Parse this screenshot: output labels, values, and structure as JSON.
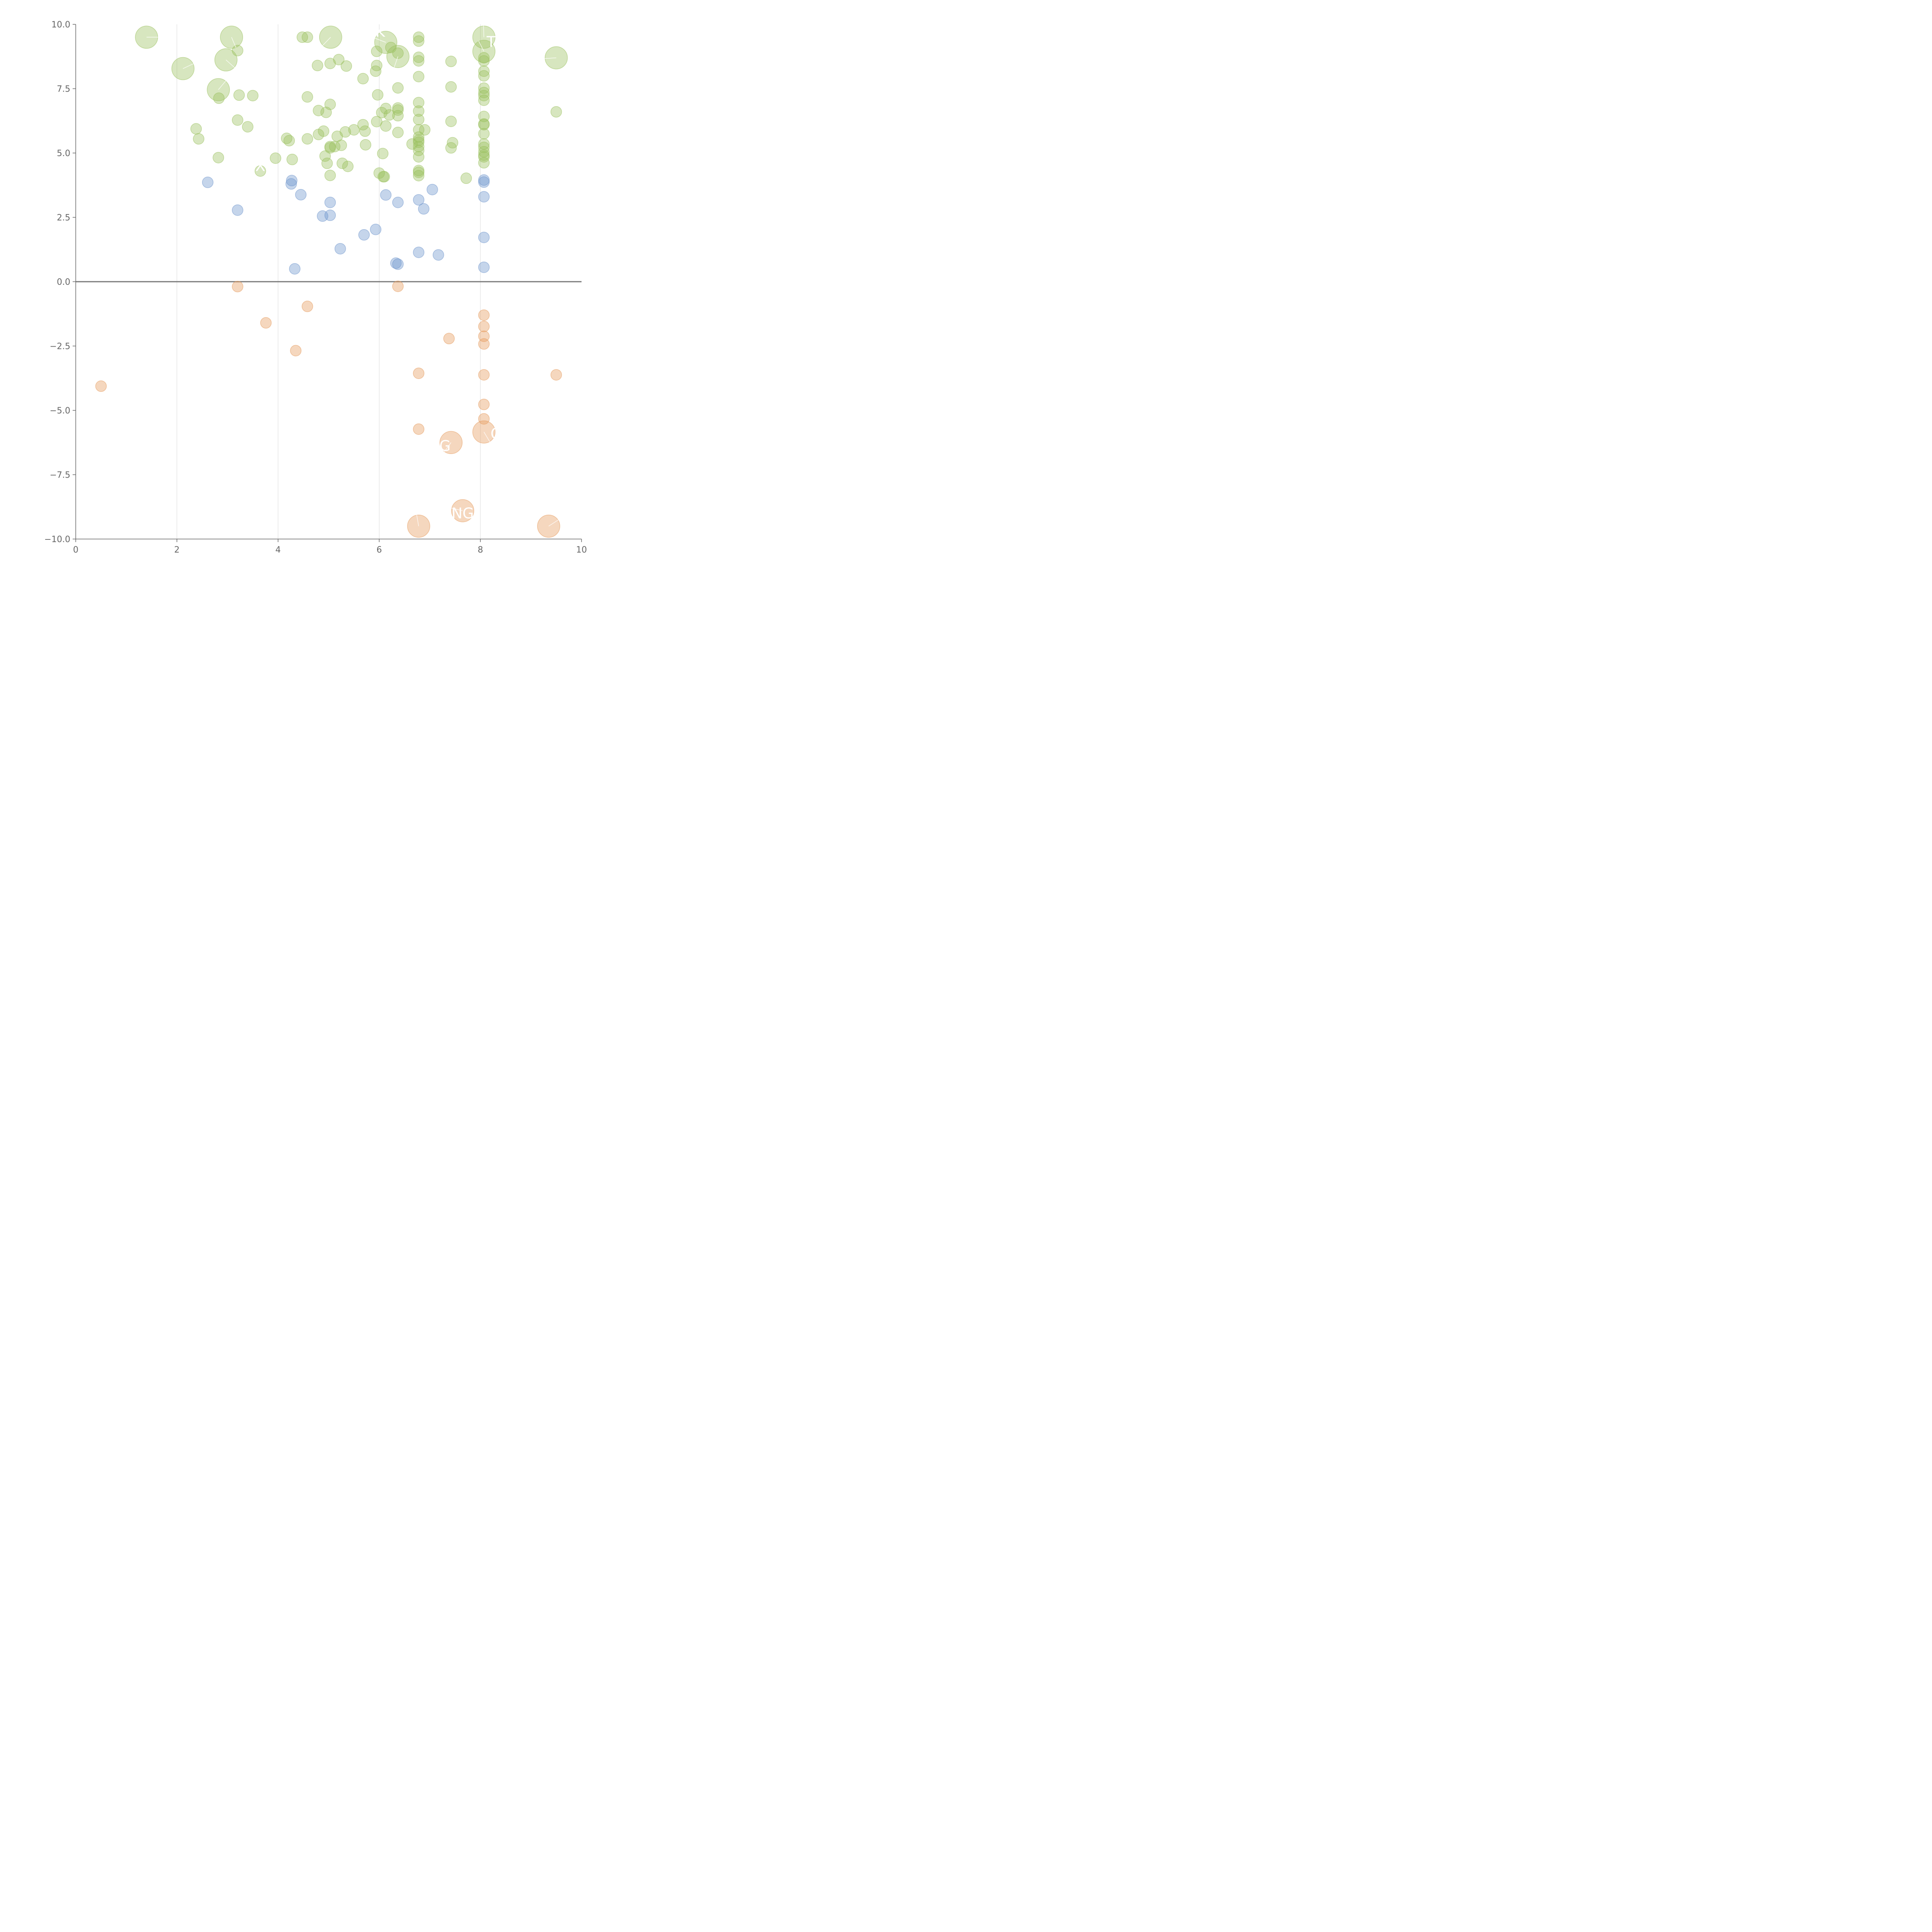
{
  "chart_data": {
    "type": "scatter",
    "subtype": "bubble",
    "title": "",
    "xlabel": "",
    "ylabel": "",
    "xlim": [
      0,
      10
    ],
    "ylim": [
      -10,
      10
    ],
    "xticks": [
      "0",
      "2",
      "4",
      "6",
      "8",
      "10"
    ],
    "yticks": [
      "10.0",
      "7.5",
      "5.0",
      "2.5",
      "0.0",
      "−2.5",
      "−5.0",
      "−7.5",
      "−10.0"
    ],
    "vertical_grid_at": [
      2,
      4,
      6,
      8
    ],
    "zero_line": 0,
    "colors": {
      "green": "#9bc15f",
      "blue": "#6f95cc",
      "orange": "#e69a5c",
      "axis": "#666666",
      "grid": "#d9d9d9"
    },
    "series": [
      {
        "name": "green",
        "color": "#9bc15f",
        "points": [
          [
            1.4,
            9.5,
            2
          ],
          [
            3.08,
            9.5,
            2
          ],
          [
            5.04,
            9.5,
            2
          ],
          [
            6.13,
            9.3,
            2
          ],
          [
            8.07,
            9.5,
            2
          ],
          [
            2.12,
            8.28,
            2
          ],
          [
            2.97,
            8.62,
            2
          ],
          [
            6.37,
            8.75,
            2
          ],
          [
            9.5,
            8.7,
            2
          ],
          [
            8.07,
            8.95,
            2
          ],
          [
            2.82,
            7.46,
            2
          ],
          [
            4.48,
            9.5,
            1
          ],
          [
            4.58,
            9.5,
            1
          ],
          [
            6.78,
            9.5,
            1
          ],
          [
            6.78,
            9.35,
            1
          ],
          [
            3.2,
            8.98,
            1
          ],
          [
            5.95,
            8.95,
            1
          ],
          [
            6.23,
            9.1,
            1
          ],
          [
            6.37,
            8.88,
            1
          ],
          [
            6.78,
            8.72,
            1
          ],
          [
            6.78,
            8.58,
            1
          ],
          [
            7.42,
            8.56,
            1
          ],
          [
            5.2,
            8.63,
            1
          ],
          [
            4.78,
            8.4,
            1
          ],
          [
            5.03,
            8.48,
            1
          ],
          [
            5.35,
            8.38,
            1
          ],
          [
            5.95,
            8.4,
            1
          ],
          [
            5.93,
            8.18,
            1
          ],
          [
            5.68,
            7.89,
            1
          ],
          [
            6.78,
            7.97,
            1
          ],
          [
            8.07,
            8.7,
            1
          ],
          [
            8.07,
            8.58,
            1
          ],
          [
            8.07,
            8.18,
            1
          ],
          [
            8.07,
            8.0,
            1
          ],
          [
            2.83,
            7.13,
            1
          ],
          [
            3.23,
            7.25,
            1
          ],
          [
            3.5,
            7.23,
            1
          ],
          [
            4.58,
            7.18,
            1
          ],
          [
            5.97,
            7.26,
            1
          ],
          [
            6.37,
            7.53,
            1
          ],
          [
            7.42,
            7.57,
            1
          ],
          [
            8.07,
            7.52,
            1
          ],
          [
            8.07,
            7.35,
            1
          ],
          [
            8.07,
            7.23,
            1
          ],
          [
            8.07,
            7.05,
            1
          ],
          [
            6.78,
            6.96,
            1
          ],
          [
            6.78,
            6.63,
            1
          ],
          [
            6.78,
            6.3,
            1
          ],
          [
            5.03,
            6.89,
            1
          ],
          [
            4.8,
            6.65,
            1
          ],
          [
            4.95,
            6.58,
            1
          ],
          [
            6.37,
            6.75,
            1
          ],
          [
            6.37,
            6.67,
            1
          ],
          [
            6.13,
            6.73,
            1
          ],
          [
            6.05,
            6.57,
            1
          ],
          [
            6.2,
            6.48,
            1
          ],
          [
            6.37,
            6.45,
            1
          ],
          [
            5.95,
            6.22,
            1
          ],
          [
            6.13,
            6.05,
            1
          ],
          [
            3.2,
            6.28,
            1
          ],
          [
            3.4,
            6.02,
            1
          ],
          [
            2.38,
            5.94,
            1
          ],
          [
            2.43,
            5.55,
            1
          ],
          [
            7.42,
            6.23,
            1
          ],
          [
            8.07,
            6.42,
            1
          ],
          [
            8.07,
            6.13,
            1
          ],
          [
            8.07,
            6.1,
            1
          ],
          [
            8.07,
            5.75,
            1
          ],
          [
            9.5,
            6.6,
            1
          ],
          [
            5.68,
            6.1,
            1
          ],
          [
            5.72,
            5.85,
            1
          ],
          [
            5.5,
            5.9,
            1
          ],
          [
            5.33,
            5.82,
            1
          ],
          [
            5.17,
            5.65,
            1
          ],
          [
            4.9,
            5.85,
            1
          ],
          [
            4.8,
            5.72,
            1
          ],
          [
            4.58,
            5.55,
            1
          ],
          [
            4.17,
            5.57,
            1
          ],
          [
            4.22,
            5.48,
            1
          ],
          [
            6.37,
            5.8,
            1
          ],
          [
            6.78,
            5.9,
            1
          ],
          [
            6.9,
            5.9,
            1
          ],
          [
            6.78,
            5.62,
            1
          ],
          [
            6.78,
            5.5,
            1
          ],
          [
            6.78,
            5.42,
            1
          ],
          [
            6.65,
            5.35,
            1
          ],
          [
            6.78,
            5.25,
            1
          ],
          [
            6.78,
            5.1,
            1
          ],
          [
            6.78,
            4.85,
            1
          ],
          [
            7.45,
            5.4,
            1
          ],
          [
            7.42,
            5.2,
            1
          ],
          [
            8.07,
            5.35,
            1
          ],
          [
            8.07,
            5.22,
            1
          ],
          [
            8.07,
            5.05,
            1
          ],
          [
            8.07,
            4.92,
            1
          ],
          [
            8.07,
            4.85,
            1
          ],
          [
            8.07,
            4.62,
            1
          ],
          [
            5.73,
            5.32,
            1
          ],
          [
            5.03,
            5.25,
            1
          ],
          [
            5.25,
            5.3,
            1
          ],
          [
            5.12,
            5.25,
            1
          ],
          [
            5.03,
            5.2,
            1
          ],
          [
            4.93,
            4.88,
            1
          ],
          [
            4.97,
            4.6,
            1
          ],
          [
            5.27,
            4.6,
            1
          ],
          [
            5.38,
            4.48,
            1
          ],
          [
            5.03,
            4.13,
            1
          ],
          [
            6.07,
            4.98,
            1
          ],
          [
            2.82,
            4.82,
            1
          ],
          [
            3.95,
            4.8,
            1
          ],
          [
            4.28,
            4.75,
            1
          ],
          [
            3.65,
            4.3,
            1
          ],
          [
            6.0,
            4.22,
            1
          ],
          [
            6.08,
            4.08,
            1
          ],
          [
            6.1,
            4.08,
            1
          ],
          [
            6.78,
            4.32,
            1
          ],
          [
            6.78,
            4.25,
            1
          ],
          [
            6.78,
            4.12,
            1
          ],
          [
            7.72,
            4.02,
            1
          ]
        ]
      },
      {
        "name": "blue",
        "color": "#6f95cc",
        "points": [
          [
            2.61,
            3.86,
            1
          ],
          [
            4.27,
            3.93,
            1
          ],
          [
            4.26,
            3.8,
            1
          ],
          [
            4.45,
            3.38,
            1
          ],
          [
            3.2,
            2.78,
            1
          ],
          [
            5.03,
            3.08,
            1
          ],
          [
            4.88,
            2.55,
            1
          ],
          [
            5.03,
            2.58,
            1
          ],
          [
            6.13,
            3.37,
            1
          ],
          [
            6.37,
            3.08,
            1
          ],
          [
            6.78,
            3.18,
            1
          ],
          [
            6.88,
            2.83,
            1
          ],
          [
            7.05,
            3.58,
            1
          ],
          [
            8.07,
            3.95,
            1
          ],
          [
            8.07,
            3.87,
            1
          ],
          [
            8.07,
            3.3,
            1
          ],
          [
            5.93,
            2.03,
            1
          ],
          [
            5.7,
            1.82,
            1
          ],
          [
            5.23,
            1.28,
            1
          ],
          [
            8.07,
            1.72,
            1
          ],
          [
            6.78,
            1.14,
            1
          ],
          [
            7.17,
            1.04,
            1
          ],
          [
            6.33,
            0.72,
            1
          ],
          [
            6.37,
            0.68,
            1
          ],
          [
            4.33,
            0.5,
            1
          ],
          [
            8.07,
            0.56,
            1
          ]
        ]
      },
      {
        "name": "orange",
        "color": "#e69a5c",
        "points": [
          [
            3.2,
            -0.19,
            1
          ],
          [
            6.37,
            -0.18,
            1
          ],
          [
            4.58,
            -0.96,
            1
          ],
          [
            3.76,
            -1.6,
            1
          ],
          [
            8.07,
            -1.3,
            1
          ],
          [
            8.07,
            -1.74,
            1
          ],
          [
            8.07,
            -2.12,
            1
          ],
          [
            7.38,
            -2.21,
            1
          ],
          [
            8.07,
            -2.42,
            1
          ],
          [
            4.35,
            -2.68,
            1
          ],
          [
            6.78,
            -3.56,
            1
          ],
          [
            8.07,
            -3.62,
            1
          ],
          [
            9.5,
            -3.62,
            1
          ],
          [
            0.5,
            -4.06,
            1
          ],
          [
            8.07,
            -4.77,
            1
          ],
          [
            8.07,
            -5.33,
            1
          ],
          [
            6.78,
            -5.73,
            1
          ],
          [
            8.07,
            -5.84,
            2
          ],
          [
            7.42,
            -6.25,
            2
          ],
          [
            7.65,
            -8.9,
            2
          ],
          [
            6.78,
            -9.5,
            2
          ],
          [
            9.35,
            -9.5,
            2
          ]
        ]
      }
    ],
    "labels": [
      {
        "text": "K",
        "x": 6.02,
        "y": 9.52,
        "anchor": "middle"
      },
      {
        "text": "TA",
        "x": 8.3,
        "y": 9.12,
        "anchor": "middle"
      },
      {
        "text": "X",
        "x": 3.65,
        "y": 4.3,
        "anchor": "middle"
      },
      {
        "text": "G",
        "x": 7.3,
        "y": -6.58,
        "anchor": "middle"
      },
      {
        "text": "O",
        "x": 8.2,
        "y": -6.1,
        "anchor": "start"
      },
      {
        "text": "NG",
        "x": 7.65,
        "y": -9.2,
        "anchor": "middle"
      }
    ]
  }
}
